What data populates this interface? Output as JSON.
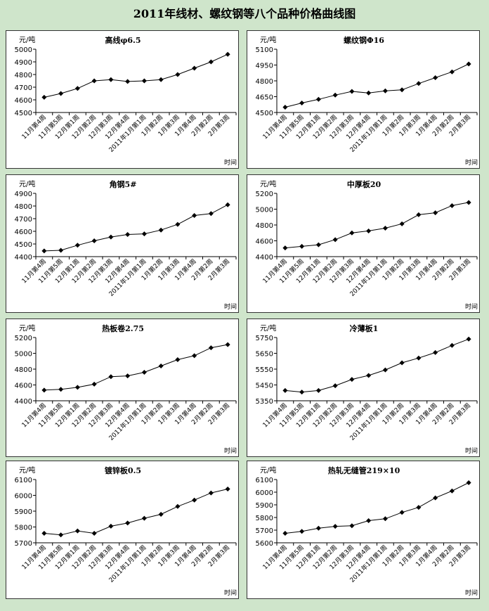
{
  "title": "2011年线材、螺纹钢等八个品种价格曲线图",
  "colors": {
    "background": "#cfe5cb",
    "panel": "#ffffff",
    "line": "#000000"
  },
  "chart_data": [
    {
      "type": "line",
      "title": "高线φ6.5",
      "ylabel": "元/吨",
      "xlabel": "时间",
      "ylim": [
        4500,
        5000
      ],
      "yticks": [
        4500,
        4600,
        4700,
        4800,
        4900,
        5000
      ],
      "categories": [
        "11月第4周",
        "11月第5周",
        "12月第1周",
        "12月第2周",
        "12月第3周",
        "12月第4周",
        "2011年1月第1周",
        "1月第2周",
        "1月第3周",
        "1月第4周",
        "2月第2周",
        "2月第3周"
      ],
      "values": [
        4620,
        4650,
        4690,
        4750,
        4760,
        4745,
        4750,
        4760,
        4800,
        4850,
        4900,
        4960
      ]
    },
    {
      "type": "line",
      "title": "螺纹钢Φ16",
      "ylabel": "元/吨",
      "xlabel": "时间",
      "ylim": [
        4500,
        5100
      ],
      "yticks": [
        4500,
        4650,
        4800,
        4950,
        5100
      ],
      "categories": [
        "11月第4周",
        "11月第5周",
        "12月第1周",
        "12月第2周",
        "12月第3周",
        "12月第4周",
        "2011年1月第1周",
        "1月第2周",
        "1月第3周",
        "1月第4周",
        "2月第2周",
        "2月第3周"
      ],
      "values": [
        4550,
        4590,
        4625,
        4665,
        4700,
        4685,
        4705,
        4715,
        4775,
        4830,
        4885,
        4960
      ]
    },
    {
      "type": "line",
      "title": "角钢5#",
      "ylabel": "元/吨",
      "xlabel": "时间",
      "ylim": [
        4400,
        4900
      ],
      "yticks": [
        4400,
        4500,
        4600,
        4700,
        4800,
        4900
      ],
      "categories": [
        "11月第4周",
        "11月第5周",
        "12月第1周",
        "12月第2周",
        "12月第3周",
        "12月第4周",
        "2011年1月第1周",
        "1月第2周",
        "1月第3周",
        "1月第4周",
        "2月第2周",
        "2月第3周"
      ],
      "values": [
        4445,
        4450,
        4490,
        4525,
        4555,
        4575,
        4580,
        4610,
        4655,
        4725,
        4740,
        4810
      ]
    },
    {
      "type": "line",
      "title": "中厚板20",
      "ylabel": "元/吨",
      "xlabel": "时间",
      "ylim": [
        4400,
        5200
      ],
      "yticks": [
        4400,
        4600,
        4800,
        5000,
        5200
      ],
      "categories": [
        "11月第4周",
        "11月第5周",
        "12月第1周",
        "12月第2周",
        "12月第3周",
        "12月第4周",
        "2011年1月第1周",
        "1月第2周",
        "1月第3周",
        "1月第4周",
        "2月第2周",
        "2月第3周"
      ],
      "values": [
        4510,
        4530,
        4550,
        4615,
        4700,
        4725,
        4760,
        4815,
        4930,
        4955,
        5045,
        5085
      ]
    },
    {
      "type": "line",
      "title": "热板卷2.75",
      "ylabel": "元/吨",
      "xlabel": "时间",
      "ylim": [
        4400,
        5200
      ],
      "yticks": [
        4400,
        4600,
        4800,
        5000,
        5200
      ],
      "categories": [
        "11月第4周",
        "11月第5周",
        "12月第1周",
        "12月第2周",
        "12月第3周",
        "12月第4周",
        "2011年1月第1周",
        "1月第2周",
        "1月第3周",
        "1月第4周",
        "2月第2周",
        "2月第3周"
      ],
      "values": [
        4535,
        4545,
        4570,
        4610,
        4705,
        4715,
        4760,
        4840,
        4920,
        4970,
        5070,
        5110
      ]
    },
    {
      "type": "line",
      "title": "冷薄板1",
      "ylabel": "元/吨",
      "xlabel": "时间",
      "ylim": [
        5350,
        5750
      ],
      "yticks": [
        5350,
        5450,
        5550,
        5650,
        5750
      ],
      "categories": [
        "11月第4周",
        "11月第5周",
        "12月第1周",
        "12月第2周",
        "12月第3周",
        "12月第4周",
        "2011年1月第1周",
        "1月第2周",
        "1月第3周",
        "1月第4周",
        "2月第2周",
        "2月第3周"
      ],
      "values": [
        5415,
        5405,
        5415,
        5445,
        5485,
        5510,
        5545,
        5590,
        5620,
        5655,
        5700,
        5740
      ]
    },
    {
      "type": "line",
      "title": "镀锌板0.5",
      "ylabel": "元/吨",
      "xlabel": "时间",
      "ylim": [
        5700,
        6100
      ],
      "yticks": [
        5700,
        5800,
        5900,
        6000,
        6100
      ],
      "categories": [
        "11月第4周",
        "11月第5周",
        "12月第1周",
        "12月第2周",
        "12月第3周",
        "12月第4周",
        "2011年1月第1周",
        "1月第2周",
        "1月第3周",
        "1月第4周",
        "2月第2周",
        "2月第3周"
      ],
      "values": [
        5760,
        5750,
        5775,
        5760,
        5805,
        5825,
        5855,
        5880,
        5930,
        5970,
        6015,
        6040
      ]
    },
    {
      "type": "line",
      "title": "热轧无缝管219×10",
      "ylabel": "元/吨",
      "xlabel": "时间",
      "ylim": [
        5600,
        6100
      ],
      "yticks": [
        5600,
        5700,
        5800,
        5900,
        6000,
        6100
      ],
      "categories": [
        "11月第4周",
        "11月第5周",
        "12月第1周",
        "12月第2周",
        "12月第3周",
        "12月第4周",
        "2011年1月第1周",
        "1月第2周",
        "1月第3周",
        "1月第4周",
        "2月第2周",
        "2月第3周"
      ],
      "values": [
        5675,
        5690,
        5715,
        5730,
        5735,
        5775,
        5790,
        5840,
        5880,
        5955,
        6010,
        6075
      ]
    }
  ]
}
